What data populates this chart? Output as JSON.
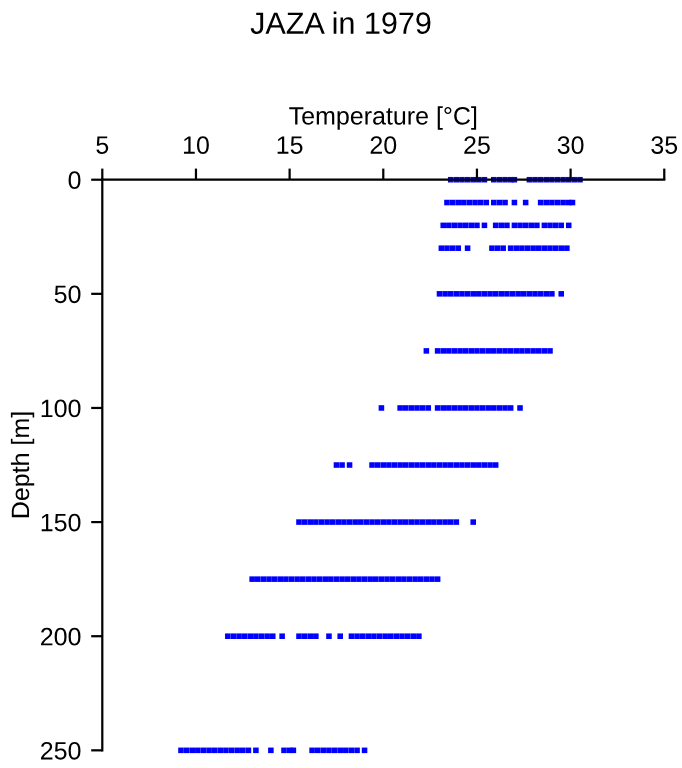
{
  "chart_data": {
    "type": "scatter",
    "title": "JAZA in 1979",
    "xlabel": "Temperature [°C]",
    "ylabel": "Depth [m]",
    "xlim": [
      5,
      35
    ],
    "xticks": [
      5,
      10,
      15,
      20,
      25,
      30,
      35
    ],
    "ylim": [
      250,
      0
    ],
    "yticks": [
      0,
      50,
      100,
      150,
      200,
      250
    ],
    "marker": "square",
    "grid": false,
    "legend": false,
    "series": [
      {
        "color": "#0000ff",
        "x": [
          23.6,
          23.9,
          24.2,
          24.5,
          24.8,
          25.1,
          25.4,
          25.9,
          26.2,
          26.5,
          26.8,
          27.0,
          27.8,
          28.1,
          28.4,
          28.7,
          29.0,
          29.3,
          29.6,
          29.9,
          30.2,
          30.5
        ],
        "values": [
          0,
          0,
          0,
          0,
          0,
          0,
          0,
          0,
          0,
          0,
          0,
          0,
          0,
          0,
          0,
          0,
          0,
          0,
          0,
          0,
          0,
          0
        ]
      },
      {
        "color": "#0000ff",
        "x": [
          23.4,
          23.7,
          24.0,
          24.3,
          24.6,
          24.9,
          25.2,
          25.5,
          25.9,
          26.2,
          26.5,
          27.0,
          27.6,
          28.4,
          28.7,
          29.0,
          29.3,
          29.6,
          29.9,
          30.1
        ],
        "values": [
          10,
          10,
          10,
          10,
          10,
          10,
          10,
          10,
          10,
          10,
          10,
          10,
          10,
          10,
          10,
          10,
          10,
          10,
          10,
          10
        ]
      },
      {
        "color": "#0000ff",
        "x": [
          23.2,
          23.5,
          23.8,
          24.1,
          24.4,
          24.7,
          25.0,
          25.4,
          26.0,
          26.3,
          26.6,
          27.0,
          27.3,
          27.6,
          27.9,
          28.2,
          28.6,
          28.9,
          29.2,
          29.5,
          29.9
        ],
        "values": [
          20,
          20,
          20,
          20,
          20,
          20,
          20,
          20,
          20,
          20,
          20,
          20,
          20,
          20,
          20,
          20,
          20,
          20,
          20,
          20,
          20
        ]
      },
      {
        "color": "#0000ff",
        "x": [
          23.1,
          23.4,
          23.7,
          24.0,
          24.5,
          25.8,
          26.1,
          26.4,
          26.8,
          27.1,
          27.4,
          27.7,
          28.0,
          28.3,
          28.6,
          28.9,
          29.2,
          29.5,
          29.8
        ],
        "values": [
          30,
          30,
          30,
          30,
          30,
          30,
          30,
          30,
          30,
          30,
          30,
          30,
          30,
          30,
          30,
          30,
          30,
          30,
          30
        ]
      },
      {
        "color": "#0000ff",
        "x": [
          23.0,
          23.3,
          23.6,
          23.9,
          24.2,
          24.5,
          24.8,
          25.1,
          25.4,
          25.7,
          26.0,
          26.3,
          26.6,
          26.9,
          27.2,
          27.5,
          27.8,
          28.1,
          28.4,
          28.7,
          29.0,
          29.5
        ],
        "values": [
          50,
          50,
          50,
          50,
          50,
          50,
          50,
          50,
          50,
          50,
          50,
          50,
          50,
          50,
          50,
          50,
          50,
          50,
          50,
          50,
          50,
          50
        ]
      },
      {
        "color": "#0000ff",
        "x": [
          22.3,
          22.9,
          23.2,
          23.5,
          23.8,
          24.1,
          24.4,
          24.7,
          25.0,
          25.3,
          25.6,
          25.9,
          26.2,
          26.5,
          26.8,
          27.1,
          27.4,
          27.7,
          28.0,
          28.3,
          28.6,
          28.9
        ],
        "values": [
          75,
          75,
          75,
          75,
          75,
          75,
          75,
          75,
          75,
          75,
          75,
          75,
          75,
          75,
          75,
          75,
          75,
          75,
          75,
          75,
          75,
          75
        ]
      },
      {
        "color": "#0000ff",
        "x": [
          19.9,
          20.9,
          21.2,
          21.5,
          21.8,
          22.1,
          22.4,
          22.9,
          23.2,
          23.5,
          23.8,
          24.1,
          24.4,
          24.7,
          25.0,
          25.3,
          25.6,
          25.9,
          26.2,
          26.5,
          26.8,
          27.3
        ],
        "values": [
          100,
          100,
          100,
          100,
          100,
          100,
          100,
          100,
          100,
          100,
          100,
          100,
          100,
          100,
          100,
          100,
          100,
          100,
          100,
          100,
          100,
          100
        ]
      },
      {
        "color": "#0000ff",
        "x": [
          17.5,
          17.8,
          18.2,
          19.4,
          19.7,
          20.0,
          20.3,
          20.6,
          20.9,
          21.2,
          21.5,
          21.8,
          22.1,
          22.4,
          22.7,
          23.0,
          23.3,
          23.6,
          23.9,
          24.2,
          24.5,
          24.8,
          25.1,
          25.4,
          25.7,
          26.0
        ],
        "values": [
          125,
          125,
          125,
          125,
          125,
          125,
          125,
          125,
          125,
          125,
          125,
          125,
          125,
          125,
          125,
          125,
          125,
          125,
          125,
          125,
          125,
          125,
          125,
          125,
          125,
          125
        ]
      },
      {
        "color": "#0000ff",
        "x": [
          15.5,
          15.8,
          16.1,
          16.4,
          16.7,
          17.0,
          17.3,
          17.6,
          17.9,
          18.2,
          18.5,
          18.8,
          19.1,
          19.4,
          19.7,
          20.0,
          20.3,
          20.6,
          20.9,
          21.2,
          21.5,
          21.8,
          22.1,
          22.4,
          22.7,
          23.0,
          23.3,
          23.6,
          23.9,
          24.8
        ],
        "values": [
          150,
          150,
          150,
          150,
          150,
          150,
          150,
          150,
          150,
          150,
          150,
          150,
          150,
          150,
          150,
          150,
          150,
          150,
          150,
          150,
          150,
          150,
          150,
          150,
          150,
          150,
          150,
          150,
          150,
          150
        ]
      },
      {
        "color": "#0000ff",
        "x": [
          13.0,
          13.3,
          13.6,
          13.9,
          14.2,
          14.5,
          14.8,
          15.1,
          15.4,
          15.7,
          16.0,
          16.3,
          16.6,
          16.9,
          17.2,
          17.5,
          17.8,
          18.1,
          18.4,
          18.7,
          19.0,
          19.3,
          19.6,
          19.9,
          20.2,
          20.5,
          20.8,
          21.1,
          21.4,
          21.7,
          22.0,
          22.3,
          22.6,
          22.9
        ],
        "values": [
          175,
          175,
          175,
          175,
          175,
          175,
          175,
          175,
          175,
          175,
          175,
          175,
          175,
          175,
          175,
          175,
          175,
          175,
          175,
          175,
          175,
          175,
          175,
          175,
          175,
          175,
          175,
          175,
          175,
          175,
          175,
          175,
          175,
          175
        ]
      },
      {
        "color": "#0000ff",
        "x": [
          11.7,
          12.0,
          12.3,
          12.6,
          12.9,
          13.2,
          13.5,
          13.8,
          14.1,
          14.6,
          15.5,
          15.8,
          16.1,
          16.4,
          17.1,
          17.7,
          18.3,
          18.6,
          18.9,
          19.2,
          19.5,
          19.8,
          20.1,
          20.4,
          20.7,
          21.0,
          21.3,
          21.6,
          21.9
        ],
        "values": [
          200,
          200,
          200,
          200,
          200,
          200,
          200,
          200,
          200,
          200,
          200,
          200,
          200,
          200,
          200,
          200,
          200,
          200,
          200,
          200,
          200,
          200,
          200,
          200,
          200,
          200,
          200,
          200,
          200
        ]
      },
      {
        "color": "#0000ff",
        "x": [
          9.2,
          9.5,
          9.8,
          10.1,
          10.4,
          10.7,
          11.0,
          11.3,
          11.6,
          11.9,
          12.2,
          12.5,
          12.8,
          13.2,
          14.0,
          14.7,
          15.0,
          15.2,
          16.2,
          16.5,
          16.8,
          17.1,
          17.4,
          17.7,
          18.0,
          18.3,
          18.6,
          19.0
        ],
        "values": [
          250,
          250,
          250,
          250,
          250,
          250,
          250,
          250,
          250,
          250,
          250,
          250,
          250,
          250,
          250,
          250,
          250,
          250,
          250,
          250,
          250,
          250,
          250,
          250,
          250,
          250,
          250,
          250
        ]
      }
    ]
  }
}
